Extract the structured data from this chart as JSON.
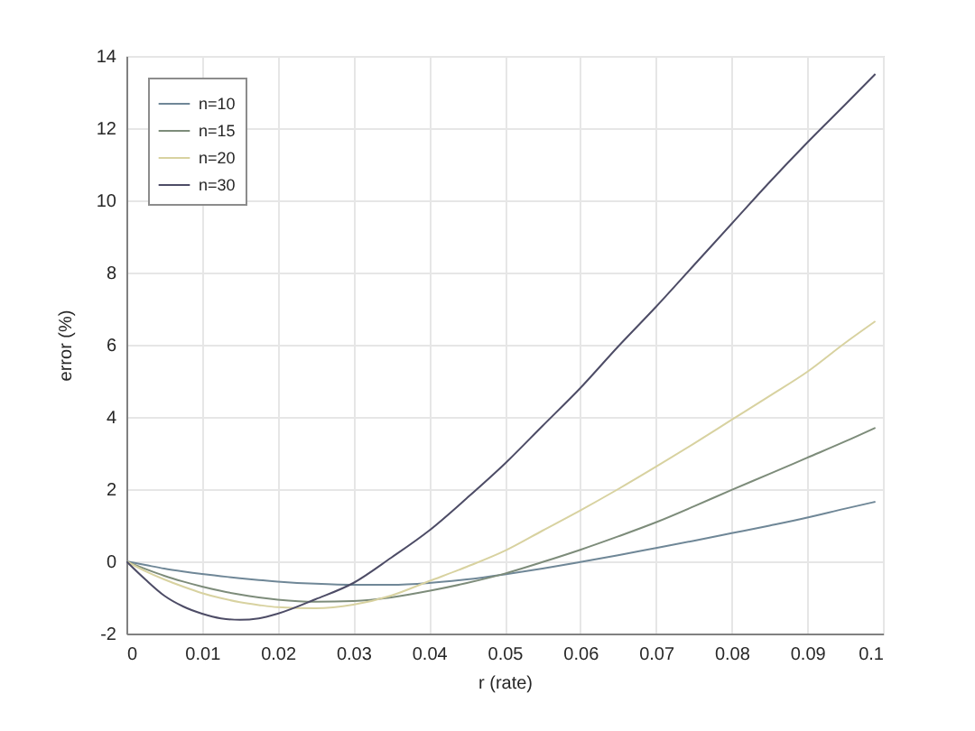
{
  "chart_data": {
    "type": "line",
    "xlabel": "r (rate)",
    "ylabel": "error (%)",
    "x": [
      0,
      0.0025,
      0.005,
      0.0075,
      0.01,
      0.0125,
      0.015,
      0.0175,
      0.02,
      0.025,
      0.03,
      0.035,
      0.04,
      0.045,
      0.05,
      0.055,
      0.06,
      0.065,
      0.07,
      0.075,
      0.08,
      0.085,
      0.09,
      0.095,
      0.099
    ],
    "series": [
      {
        "name": "n=10",
        "color": "#6f8797",
        "values": [
          0,
          -0.1,
          -0.2,
          -0.28,
          -0.35,
          -0.41,
          -0.47,
          -0.52,
          -0.56,
          -0.62,
          -0.65,
          -0.65,
          -0.6,
          -0.5,
          -0.36,
          -0.2,
          -0.02,
          0.17,
          0.37,
          0.57,
          0.78,
          0.99,
          1.21,
          1.46,
          1.65
        ]
      },
      {
        "name": "n=15",
        "color": "#7d8c7a",
        "values": [
          0,
          -0.21,
          -0.4,
          -0.56,
          -0.7,
          -0.82,
          -0.92,
          -1.0,
          -1.06,
          -1.12,
          -1.1,
          -1.0,
          -0.82,
          -0.6,
          -0.34,
          -0.02,
          0.32,
          0.69,
          1.08,
          1.52,
          1.98,
          2.42,
          2.87,
          3.32,
          3.7
        ]
      },
      {
        "name": "n=20",
        "color": "#d8d2a0",
        "values": [
          0,
          -0.27,
          -0.5,
          -0.7,
          -0.88,
          -1.02,
          -1.13,
          -1.21,
          -1.27,
          -1.3,
          -1.2,
          -0.95,
          -0.55,
          -0.15,
          0.29,
          0.85,
          1.41,
          2.0,
          2.62,
          3.26,
          3.92,
          4.58,
          5.25,
          6.05,
          6.65
        ]
      },
      {
        "name": "n=30",
        "color": "#4d4c66",
        "values": [
          0,
          -0.5,
          -0.95,
          -1.25,
          -1.45,
          -1.58,
          -1.62,
          -1.58,
          -1.45,
          -1.05,
          -0.6,
          0.1,
          0.85,
          1.75,
          2.7,
          3.75,
          4.8,
          5.95,
          7.05,
          8.2,
          9.35,
          10.5,
          11.6,
          12.65,
          13.5
        ]
      }
    ],
    "xlim": [
      0,
      0.1
    ],
    "xticks": [
      0,
      0.01,
      0.02,
      0.03,
      0.04,
      0.05,
      0.06,
      0.07,
      0.08,
      0.09,
      0.1
    ],
    "ylim": [
      -2,
      14
    ],
    "yticks": [
      -2,
      0,
      2,
      4,
      6,
      8,
      10,
      12,
      14
    ],
    "grid": true,
    "legend": "top left",
    "marker": "none",
    "line_style": "solid"
  }
}
